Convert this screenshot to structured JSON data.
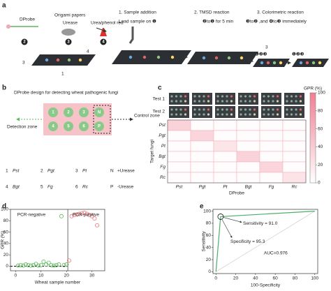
{
  "figure": {
    "a": {
      "label": "a",
      "dprobe": "DProbe",
      "origami": "Origami papers",
      "urease": "Urease",
      "urea": "Urea/phenol red",
      "step1": "1. Sample addition",
      "step1_note": "Load sample on ❶",
      "step2": "2. TMSD reaction",
      "step2_note": "❷to❶ for 5 min",
      "step3": "3. Colorimetric reaction",
      "step3_note": "❸to❷ ,and ❹to❸ immediately",
      "badges": [
        "2",
        "3",
        "4"
      ],
      "device": [
        "3",
        "4",
        "1"
      ],
      "seq": [
        "❶❷❸",
        "3",
        "❶❷❸"
      ]
    },
    "b": {
      "label": "b",
      "title": "DProbe design for detecting wheat pathogenic fungi",
      "detection": "Detection zone",
      "control": "Control zone",
      "wells": [
        "1",
        "2",
        "3",
        "N",
        "4",
        "5",
        "6",
        "P"
      ],
      "legend": [
        [
          "1",
          "Pst"
        ],
        [
          "2",
          "Pgt"
        ],
        [
          "3",
          "Pt"
        ],
        [
          "N",
          "+Urease"
        ],
        [
          "4",
          "Bgt"
        ],
        [
          "5",
          "Fg"
        ],
        [
          "6",
          "Rc"
        ],
        [
          "P",
          "-Urease"
        ]
      ]
    },
    "c": {
      "label": "c",
      "rows": [
        "Test 1",
        "Test 2"
      ]
    },
    "d": {
      "label": "d"
    },
    "e": {
      "label": "e"
    }
  },
  "chart_data": [
    {
      "type": "heatmap",
      "colorbar_label": "GPR (%)",
      "x_label": "DProbe",
      "y_label": "Target fungi",
      "x_categories": [
        "Pst",
        "Pgt",
        "Pt",
        "Bgt",
        "Fg",
        "Rc"
      ],
      "y_categories": [
        "Pst",
        "Pgt",
        "Pt",
        "Bgt",
        "Fg",
        "Rc"
      ],
      "values": [
        [
          35,
          2,
          2,
          2,
          2,
          2
        ],
        [
          2,
          32,
          2,
          2,
          2,
          2
        ],
        [
          2,
          2,
          20,
          2,
          2,
          2
        ],
        [
          2,
          2,
          2,
          35,
          2,
          2
        ],
        [
          2,
          2,
          2,
          2,
          33,
          2
        ],
        [
          2,
          2,
          2,
          2,
          2,
          22
        ]
      ],
      "zlim": [
        0,
        100
      ],
      "zticks": [
        0,
        20,
        40,
        60,
        80,
        100
      ],
      "color": "#f07f92"
    },
    {
      "type": "scatter",
      "x_label": "Wheat sample number",
      "y_label": "GPR (%)",
      "xlim": [
        -2,
        35
      ],
      "ylim": [
        -8,
        100
      ],
      "xticks": [
        0,
        10,
        20,
        30
      ],
      "yticks": [
        0,
        20,
        40,
        60,
        80,
        100
      ],
      "threshold": 0,
      "divider_x": 20.5,
      "series": [
        {
          "name": "PCR-negative",
          "color": "#5cb85c",
          "x": [
            1,
            2,
            3,
            4,
            5,
            6,
            7,
            8,
            9,
            10,
            11,
            12,
            13,
            14,
            15,
            16,
            17,
            18,
            19,
            20
          ],
          "values": [
            1,
            2,
            1,
            3,
            2,
            1,
            2,
            4,
            1,
            2,
            8,
            3,
            6,
            2,
            1,
            2,
            3,
            88,
            2,
            3
          ]
        },
        {
          "name": "PCR-positive",
          "color": "#e8787c",
          "x": [
            21,
            22,
            23,
            24,
            25,
            26,
            27,
            28,
            29,
            30,
            31,
            32
          ],
          "values": [
            10,
            88,
            90,
            91,
            92,
            93,
            94,
            92,
            90,
            88,
            84,
            72
          ]
        }
      ]
    },
    {
      "type": "line",
      "x_label": "100-Specificity",
      "y_label": "Sensitivity",
      "xlim": [
        -3,
        103
      ],
      "ylim": [
        -3,
        103
      ],
      "xticks": [
        0,
        20,
        40,
        60,
        80,
        100
      ],
      "yticks": [
        0,
        20,
        40,
        60,
        80,
        100
      ],
      "series": [
        {
          "color": "#4cae6a",
          "x": [
            0,
            4.7,
            100
          ],
          "values": [
            0,
            91,
            100
          ]
        }
      ],
      "annotations": [
        "Sensitivity = 91.0",
        "Specificity = 95.3",
        "AUC=0.976"
      ]
    }
  ]
}
